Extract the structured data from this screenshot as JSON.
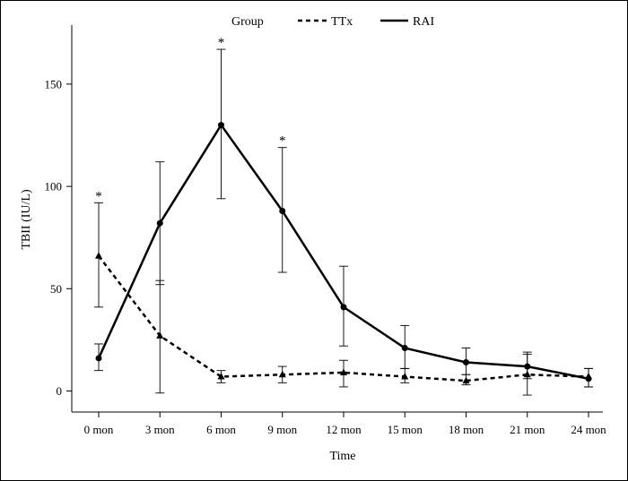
{
  "chart_data": {
    "type": "line",
    "title": "",
    "xlabel": "Time",
    "ylabel": "TBII (IU/L)",
    "categories": [
      "0 mon",
      "3 mon",
      "6 mon",
      "9 mon",
      "12 mon",
      "15 mon",
      "18 mon",
      "21 mon",
      "24 mon"
    ],
    "ylim": [
      -10,
      180
    ],
    "yticks": [
      0,
      50,
      100,
      150
    ],
    "grid": false,
    "legend": {
      "title": "Group",
      "placement": "top-center",
      "entries": [
        {
          "name": "TTx",
          "style": "dashed"
        },
        {
          "name": "RAI",
          "style": "solid"
        }
      ]
    },
    "series": [
      {
        "name": "TTx",
        "style": "dashed",
        "marker": "triangle",
        "values": [
          66,
          27,
          7,
          8,
          9,
          7,
          5,
          8,
          7
        ],
        "err_low": [
          41,
          -1,
          4,
          4,
          2,
          4,
          3,
          -2,
          2
        ],
        "err_high": [
          92,
          54,
          10,
          12,
          15,
          11,
          8,
          18,
          11
        ]
      },
      {
        "name": "RAI",
        "style": "solid",
        "marker": "circle",
        "values": [
          16,
          82,
          130,
          88,
          41,
          21,
          14,
          12,
          6
        ],
        "err_low": [
          10,
          52,
          94,
          58,
          22,
          11,
          8,
          6,
          2
        ],
        "err_high": [
          23,
          112,
          167,
          119,
          61,
          32,
          21,
          19,
          11
        ]
      }
    ],
    "annotations": [
      {
        "category": "0 mon",
        "text": "*"
      },
      {
        "category": "6 mon",
        "text": "*"
      },
      {
        "category": "9 mon",
        "text": "*"
      }
    ]
  }
}
